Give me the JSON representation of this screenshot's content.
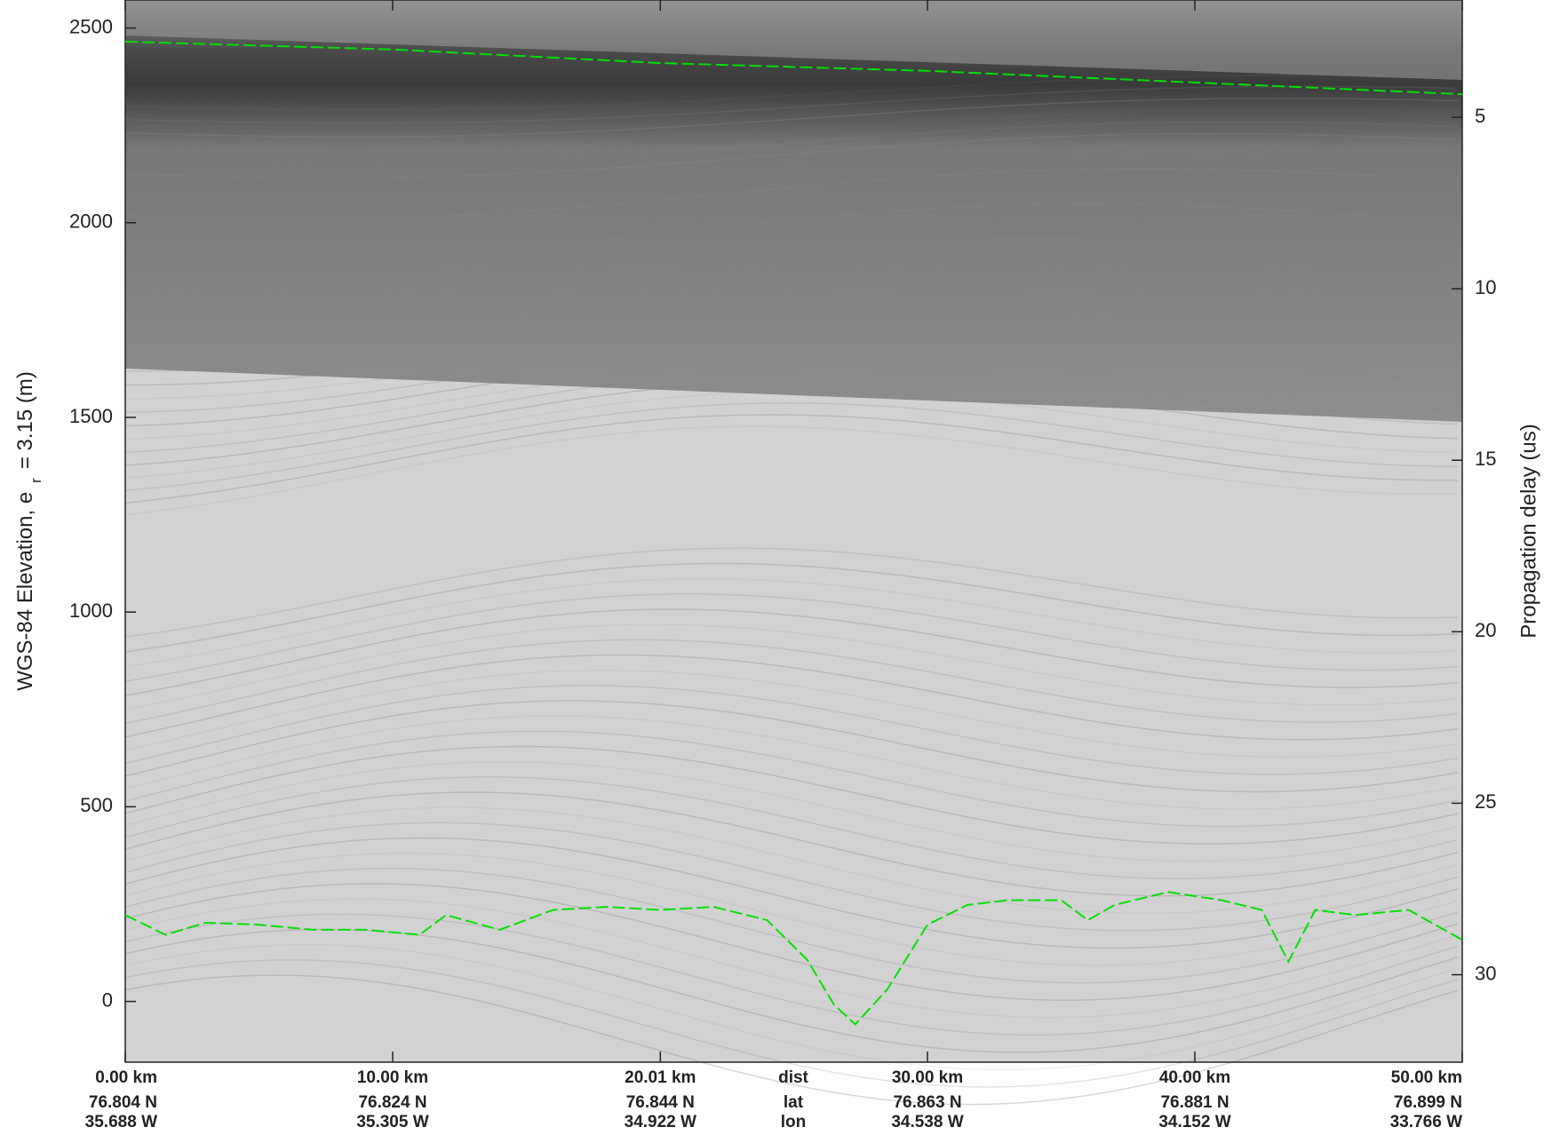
{
  "chart_data": {
    "type": "echogram",
    "y_label": "WGS-84 Elevation, e",
    "y_label_subscript": "r",
    "y_label_suffix": "= 3.15 (m)",
    "y2_label": "Propagation delay (us)",
    "ylim": [
      -156,
      2572
    ],
    "yticks": [
      0,
      500,
      1000,
      1500,
      2000,
      2500
    ],
    "y2lim": [
      32.55,
      1.58
    ],
    "y2ticks": [
      5,
      10,
      15,
      20,
      25,
      30
    ],
    "xlim": [
      0,
      50
    ],
    "xticks": [
      {
        "value": 0,
        "label": "0.00 km"
      },
      {
        "value": 10,
        "label": "10.00 km"
      },
      {
        "value": 20.01,
        "label": "20.01 km"
      },
      {
        "value": 30,
        "label": "30.00 km"
      },
      {
        "value": 40,
        "label": "40.00 km"
      },
      {
        "value": 50,
        "label": "50.00 km"
      }
    ],
    "lat_labels": [
      "76.804 N",
      "76.824 N",
      "76.844 N",
      "76.863 N",
      "76.881 N",
      "76.899 N"
    ],
    "lon_labels": [
      "35.688 W",
      "35.305 W",
      "34.922 W",
      "34.538 W",
      "34.152 W",
      "33.766 W"
    ],
    "row_labels": [
      "dist",
      "lat",
      "lon"
    ],
    "series": [
      {
        "color": "#00e000",
        "x": [
          0,
          10,
          20,
          30,
          40,
          50
        ],
        "values": [
          2465,
          2445,
          2410,
          2390,
          2360,
          2330
        ]
      },
      {
        "color": "#00e000",
        "x": [
          0,
          1.5,
          3,
          5,
          7,
          9,
          11,
          12,
          14,
          16,
          18,
          20,
          22,
          24,
          25.5,
          26.5,
          27.3,
          28.5,
          30,
          31.5,
          33,
          35,
          36,
          37,
          39,
          41,
          42.5,
          43.5,
          44.5,
          46,
          48,
          50
        ],
        "values": [
          222,
          171,
          202,
          197,
          184,
          184,
          171,
          222,
          184,
          235,
          243,
          235,
          243,
          209,
          107,
          -8,
          -59,
          31,
          197,
          248,
          260,
          260,
          209,
          248,
          281,
          260,
          235,
          102,
          235,
          222,
          235,
          158
        ]
      }
    ]
  }
}
